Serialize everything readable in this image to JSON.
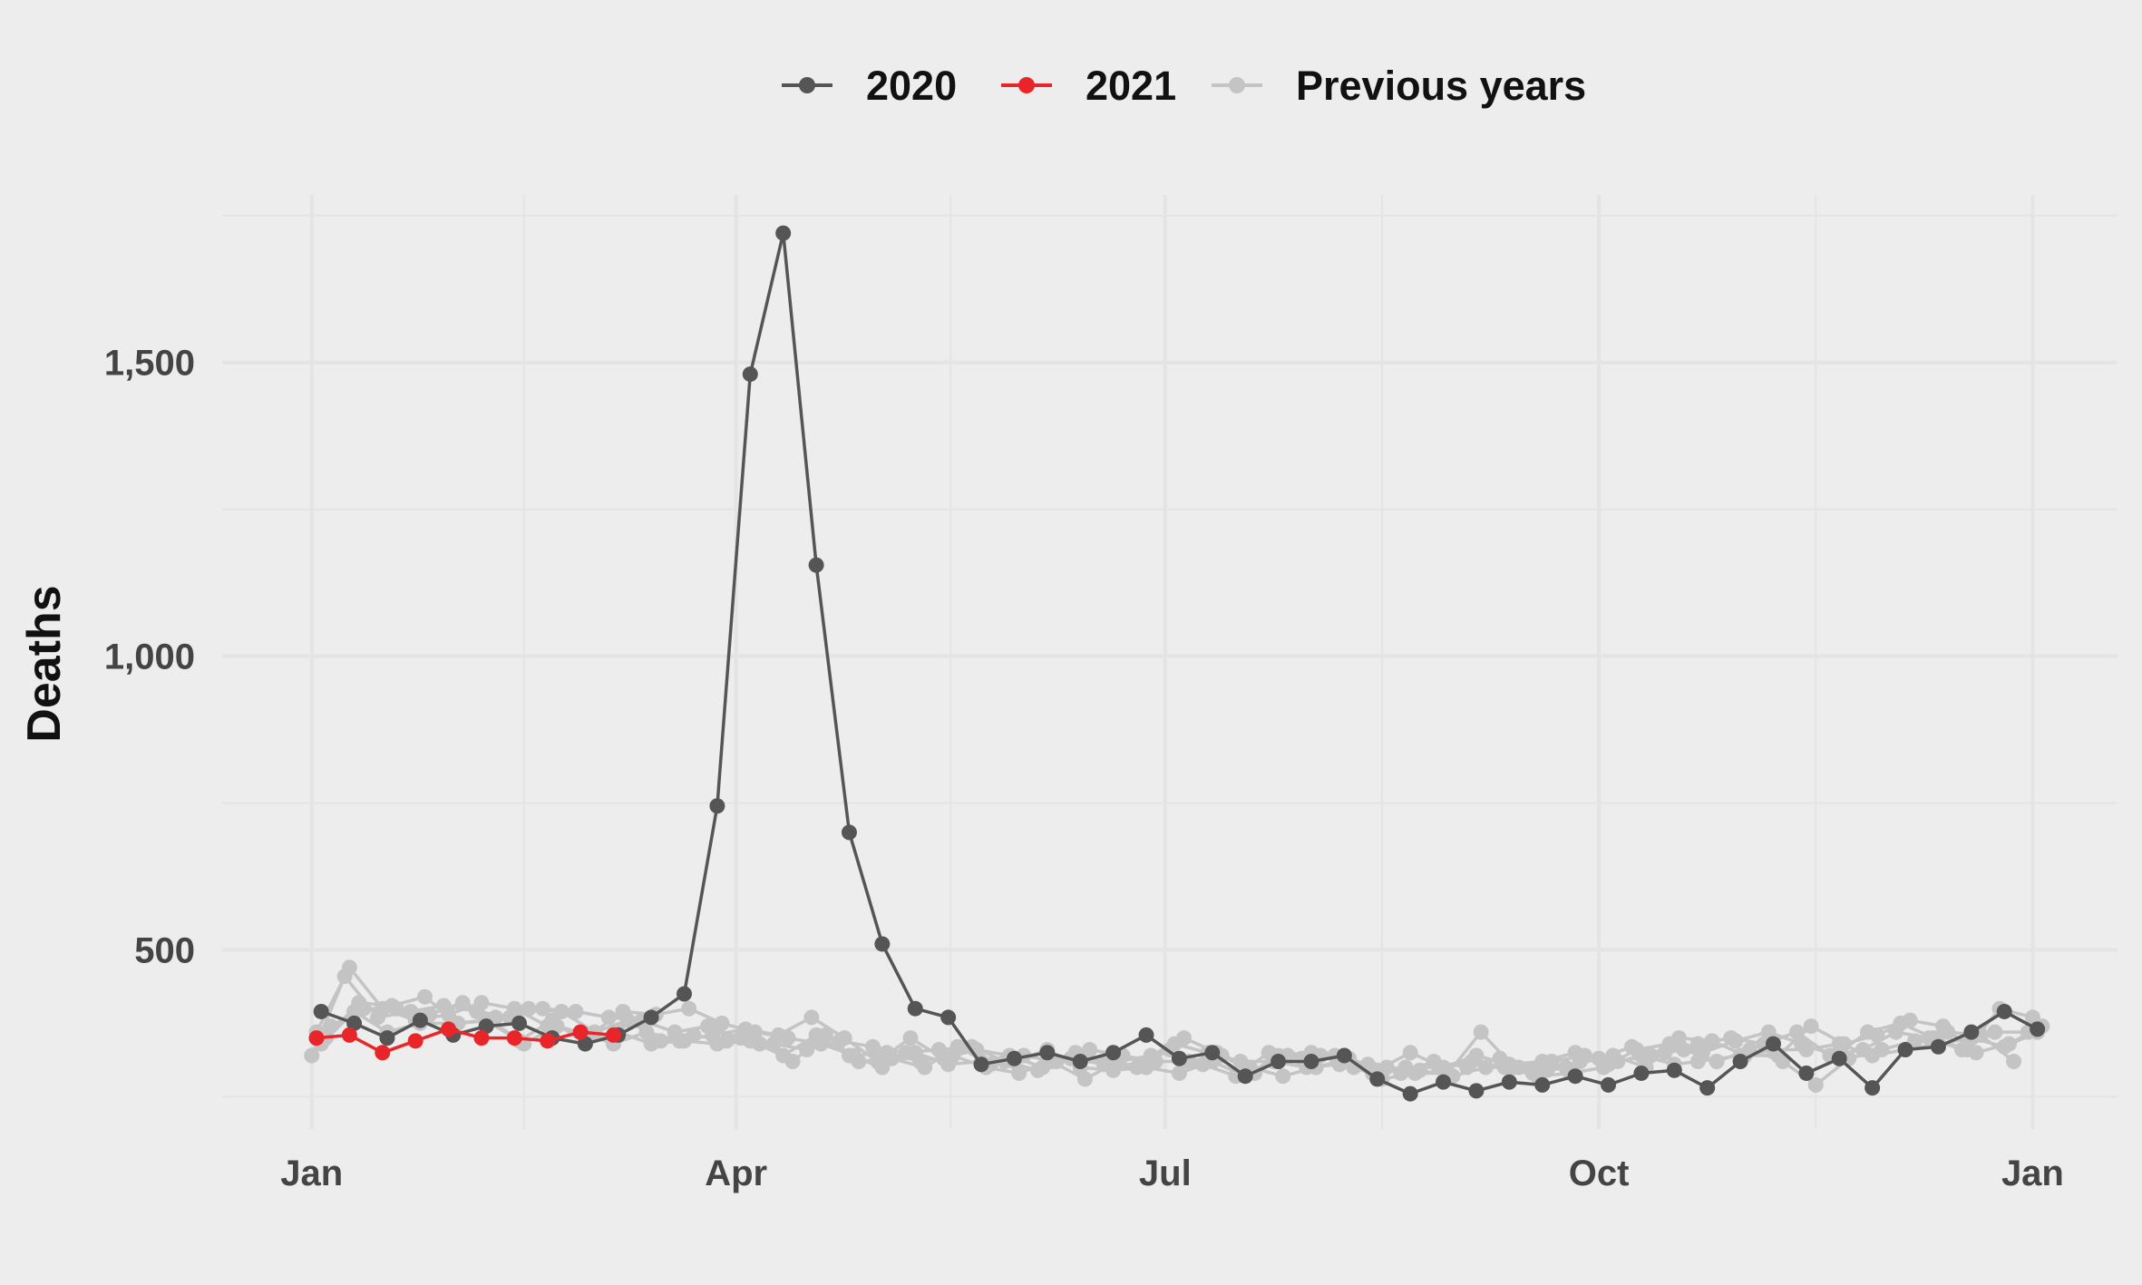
{
  "chart_data": {
    "type": "line",
    "title": "",
    "xlabel": "",
    "ylabel": "Deaths",
    "x_unit": "day of year",
    "x_ticks": [
      {
        "label": "Jan",
        "day": 1
      },
      {
        "label": "Apr",
        "day": 91
      },
      {
        "label": "Jul",
        "day": 182
      },
      {
        "label": "Oct",
        "day": 274
      },
      {
        "label": "Jan",
        "day": 366
      }
    ],
    "y_ticks": [
      {
        "label": "500",
        "value": 500
      },
      {
        "label": "1,000",
        "value": 1000
      },
      {
        "label": "1,500",
        "value": 1500
      }
    ],
    "xlim": [
      -18,
      384
    ],
    "ylim": [
      195,
      1785
    ],
    "grid": true,
    "legend_position": "top",
    "colors": {
      "2020": "#555555",
      "2021": "#e8262a",
      "previous": "#c4c4c4",
      "grid": "#e4e4e4",
      "background": "#ededee"
    },
    "legend": [
      {
        "name": "2020",
        "color": "#555555"
      },
      {
        "name": "2021",
        "color": "#e8262a"
      },
      {
        "name": "Previous years",
        "color": "#c4c4c4"
      }
    ],
    "series": [
      {
        "name": "Previous years",
        "group": "previous",
        "x": [
          1,
          8,
          15,
          22,
          29,
          36,
          43,
          50,
          57,
          64,
          71,
          78,
          85,
          92,
          99,
          106,
          113,
          120,
          127,
          134,
          141,
          148,
          155,
          162,
          169,
          176,
          183,
          190,
          197,
          204,
          211,
          218,
          225,
          232,
          239,
          246,
          253,
          260,
          267,
          274,
          281,
          288,
          295,
          302,
          309,
          316,
          323,
          330,
          337,
          344,
          351,
          358,
          365
        ],
        "y": [
          320,
          455,
          385,
          395,
          405,
          395,
          385,
          400,
          395,
          385,
          380,
          360,
          370,
          350,
          340,
          330,
          345,
          335,
          325,
          330,
          335,
          310,
          295,
          315,
          305,
          300,
          330,
          305,
          285,
          325,
          315,
          320,
          305,
          290,
          310,
          300,
          315,
          290,
          300,
          315,
          335,
          325,
          340,
          350,
          340,
          360,
          320,
          330,
          360,
          350,
          330,
          360,
          360
        ]
      },
      {
        "name": "Previous years",
        "group": "previous",
        "x": [
          2,
          9,
          16,
          23,
          30,
          37,
          44,
          51,
          58,
          65,
          72,
          79,
          86,
          93,
          100,
          107,
          114,
          121,
          128,
          135,
          142,
          149,
          156,
          163,
          170,
          177,
          184,
          191,
          198,
          205,
          212,
          219,
          226,
          233,
          240,
          247,
          254,
          261,
          268,
          275,
          282,
          289,
          296,
          303,
          310,
          317,
          324,
          331,
          338,
          345,
          352,
          359,
          366
        ],
        "y": [
          360,
          470,
          400,
          380,
          390,
          410,
          400,
          370,
          360,
          340,
          360,
          345,
          355,
          365,
          355,
          385,
          350,
          310,
          350,
          315,
          330,
          320,
          300,
          325,
          305,
          305,
          340,
          325,
          310,
          310,
          300,
          305,
          290,
          300,
          300,
          310,
          300,
          285,
          290,
          300,
          330,
          340,
          325,
          345,
          360,
          340,
          320,
          360,
          375,
          350,
          330,
          400,
          385
        ]
      },
      {
        "name": "Previous years",
        "group": "previous",
        "x": [
          3,
          10,
          17,
          24,
          31,
          38,
          45,
          52,
          59,
          66,
          73,
          80,
          87,
          94,
          101,
          108,
          115,
          122,
          129,
          136,
          143,
          150,
          157,
          164,
          171,
          178,
          185,
          192,
          199,
          206,
          213,
          220,
          227,
          234,
          241,
          248,
          255,
          262,
          269,
          276,
          283,
          290,
          295,
          304,
          311,
          318,
          325,
          332,
          339,
          346,
          353,
          360,
          367
        ],
        "y": [
          340,
          395,
          360,
          375,
          375,
          380,
          345,
          380,
          340,
          360,
          340,
          345,
          340,
          345,
          320,
          355,
          320,
          300,
          325,
          305,
          310,
          310,
          330,
          300,
          295,
          300,
          290,
          310,
          285,
          320,
          325,
          320,
          295,
          325,
          300,
          320,
          305,
          310,
          325,
          305,
          320,
          305,
          310,
          320,
          330,
          330,
          340,
          320,
          330,
          340,
          350,
          335,
          360
        ]
      },
      {
        "name": "Previous years",
        "group": "previous",
        "x": [
          4,
          11,
          18,
          25,
          32,
          39,
          46,
          53,
          60,
          67,
          74,
          81,
          88,
          95,
          102,
          109,
          116,
          123,
          130,
          137,
          144,
          151,
          158,
          165,
          172,
          179,
          186,
          193,
          200,
          207,
          214,
          221,
          228,
          235,
          242,
          249,
          256,
          263,
          270,
          277,
          284,
          291,
          298,
          305,
          312,
          319,
          326,
          333,
          340,
          347,
          354,
          361,
          368
        ],
        "y": [
          350,
          410,
          405,
          420,
          375,
          380,
          340,
          370,
          355,
          395,
          390,
          400,
          375,
          360,
          350,
          340,
          320,
          325,
          310,
          320,
          300,
          290,
          310,
          280,
          310,
          320,
          350,
          325,
          300,
          285,
          300,
          315,
          280,
          290,
          290,
          360,
          300,
          295,
          310,
          320,
          300,
          350,
          345,
          320,
          320,
          370,
          340,
          355,
          380,
          370,
          325,
          340,
          370
        ]
      },
      {
        "name": "Previous years",
        "group": "previous",
        "x": [
          5,
          12,
          19,
          26,
          33,
          40,
          47,
          54,
          61,
          68,
          75,
          82,
          89,
          96,
          103,
          110,
          117,
          124,
          131,
          138,
          145,
          152,
          159,
          166,
          173,
          180,
          187,
          194,
          201,
          208,
          215,
          222,
          229,
          236,
          243,
          250,
          257,
          264,
          271,
          278,
          285,
          292,
          299,
          306,
          313,
          320,
          327,
          334,
          341,
          348,
          355,
          362
        ],
        "y": [
          370,
          400,
          400,
          390,
          410,
          385,
          400,
          395,
          360,
          380,
          345,
          355,
          345,
          340,
          310,
          355,
          310,
          315,
          300,
          335,
          305,
          320,
          310,
          330,
          320,
          310,
          310,
          320,
          290,
          320,
          320,
          300,
          300,
          295,
          285,
          300,
          300,
          310,
          320,
          310,
          320,
          330,
          310,
          330,
          310,
          270,
          315,
          330,
          345,
          360,
          355,
          310
        ]
      }
    ]
  },
  "highlight_series": [
    {
      "name": "2020",
      "group": "2020",
      "x": [
        3,
        10,
        17,
        24,
        31,
        38,
        45,
        52,
        59,
        66,
        73,
        80,
        87,
        94,
        101,
        108,
        115,
        122,
        129,
        136,
        143,
        150,
        157,
        164,
        171,
        178,
        185,
        192,
        199,
        206,
        213,
        220,
        227,
        234,
        241,
        248,
        255,
        262,
        269,
        276,
        283,
        290,
        297,
        304,
        311,
        318,
        325,
        332,
        339,
        346,
        353,
        360,
        367
      ],
      "y": [
        395,
        375,
        350,
        380,
        355,
        370,
        375,
        350,
        340,
        355,
        385,
        425,
        745,
        1480,
        1720,
        1155,
        700,
        510,
        400,
        385,
        305,
        315,
        325,
        310,
        325,
        355,
        315,
        325,
        285,
        310,
        310,
        320,
        280,
        255,
        275,
        260,
        275,
        270,
        285,
        270,
        290,
        295,
        265,
        310,
        340,
        290,
        315,
        265,
        330,
        335,
        360,
        395,
        365
      ]
    },
    {
      "name": "2021",
      "group": "2021",
      "x": [
        2,
        9,
        16,
        23,
        30,
        37,
        44,
        51,
        58,
        65
      ],
      "y": [
        350,
        355,
        325,
        345,
        365,
        350,
        350,
        345,
        360,
        355
      ]
    }
  ]
}
